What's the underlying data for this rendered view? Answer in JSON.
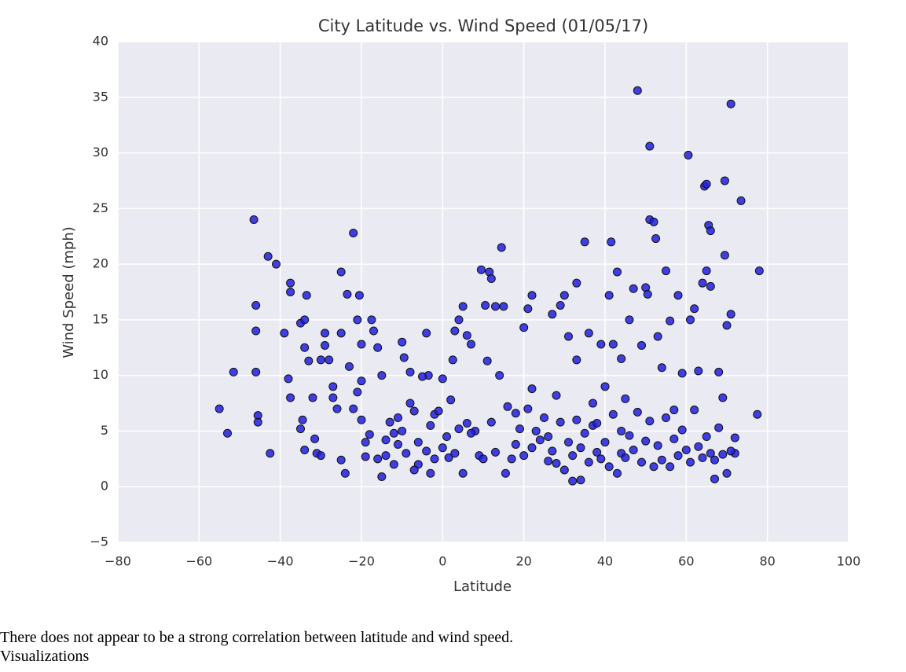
{
  "chart_data": {
    "type": "scatter",
    "title": "City Latitude vs. Wind Speed (01/05/17)",
    "x_label": "Latitude",
    "y_label": "Wind Speed (mph)",
    "color": "#2020e0",
    "grid": true,
    "xlim": [
      -80,
      100
    ],
    "ylim": [
      -5,
      40
    ],
    "xticks": [
      {
        "value": -80,
        "label": "−80"
      },
      {
        "value": -60,
        "label": "−60"
      },
      {
        "value": -40,
        "label": "−40"
      },
      {
        "value": -20,
        "label": "−20"
      },
      0,
      20,
      40,
      60,
      80,
      100
    ],
    "yticks": [
      {
        "value": -5,
        "label": "−5"
      },
      0,
      5,
      10,
      15,
      20,
      25,
      30,
      35,
      40
    ],
    "x": [
      -55,
      -53,
      -51.5,
      -46.5,
      -46,
      -46,
      -46,
      -45.5,
      -45.5,
      -43,
      -42.5,
      -41,
      -39,
      -38,
      -37.5,
      -37.5,
      -37.5,
      -35,
      -34,
      -34,
      -33.5,
      -33,
      -34,
      -34.5,
      -35,
      -32,
      -31.5,
      -31,
      -30,
      -29,
      -29,
      -28,
      -27,
      -26,
      -25,
      -25,
      -25,
      -24,
      -23.5,
      -23,
      -22,
      -21,
      -20.5,
      -20,
      -20,
      -20,
      -19,
      -18,
      -17.5,
      -17,
      -16,
      -15,
      -15,
      -14,
      -13,
      -12,
      -11,
      -10,
      -9.5,
      -8,
      -7,
      -6,
      -4,
      -3.5,
      -3,
      -2,
      0,
      0,
      1.5,
      2.5,
      3,
      4,
      5,
      6,
      7,
      8,
      9,
      9.5,
      10.5,
      11,
      11.5,
      12,
      13,
      14,
      14.5,
      15,
      15.5,
      18,
      20,
      21,
      22,
      22,
      24,
      26,
      27,
      28,
      29,
      30,
      31,
      32,
      33,
      33,
      34,
      35,
      36,
      37,
      38,
      39,
      40,
      41,
      41.5,
      42,
      43,
      44,
      44,
      45,
      46,
      47,
      48,
      49,
      50,
      50.5,
      51,
      51,
      52,
      52.5,
      53,
      54,
      55,
      56,
      57,
      58,
      59,
      60.5,
      61,
      62,
      63,
      64,
      64.5,
      65,
      65.5,
      65,
      66,
      66,
      67,
      68,
      69,
      69.5,
      69.5,
      70,
      71,
      71,
      72,
      73.5,
      77.5,
      78,
      -12,
      -10,
      -9,
      -8,
      -7,
      -6,
      -5,
      -4,
      -3,
      -2,
      -1,
      1,
      2,
      3,
      4,
      5,
      6,
      7,
      10,
      12,
      13,
      16,
      17,
      18,
      19,
      20,
      21,
      22,
      23,
      25,
      26,
      27,
      28,
      29,
      30,
      31,
      32,
      33,
      34,
      35,
      36,
      37,
      38,
      39,
      40,
      41,
      42,
      43,
      44,
      45,
      46,
      47,
      48,
      49,
      50,
      51,
      52,
      53,
      54,
      55,
      56,
      57,
      58,
      59,
      60,
      61,
      62,
      63,
      64,
      65,
      66,
      67,
      68,
      69,
      70,
      71,
      72,
      -30,
      -27,
      -22,
      -21,
      -19,
      -16,
      -14,
      -11
    ],
    "values": [
      7,
      4.8,
      10.3,
      24,
      16.3,
      14,
      10.3,
      6.4,
      5.8,
      20.7,
      3,
      20,
      13.8,
      9.7,
      18.3,
      17.5,
      8,
      14.7,
      15,
      12.5,
      17.2,
      11.3,
      3.3,
      6,
      5.2,
      8,
      4.3,
      3,
      2.8,
      12.7,
      13.8,
      11.4,
      9,
      7,
      19.3,
      13.8,
      2.4,
      1.2,
      17.3,
      10.8,
      22.8,
      15,
      17.2,
      12.8,
      9.5,
      6,
      2.7,
      4.7,
      15,
      14,
      12.5,
      10,
      0.9,
      2.8,
      5.8,
      4.8,
      3.8,
      13,
      11.6,
      10.3,
      6.8,
      2,
      13.8,
      10,
      1.2,
      6.5,
      3.5,
      9.7,
      2.6,
      11.4,
      14,
      15,
      16.2,
      13.6,
      12.8,
      5,
      2.8,
      19.5,
      16.3,
      11.3,
      19.3,
      18.7,
      16.2,
      10,
      21.5,
      16.2,
      1.2,
      6.6,
      14.3,
      16,
      17.2,
      8.8,
      4.2,
      2.3,
      15.5,
      8.2,
      16.3,
      17.2,
      13.5,
      0.5,
      18.3,
      11.4,
      0.6,
      22,
      13.8,
      5.5,
      5.7,
      12.8,
      9,
      17.2,
      22,
      12.8,
      19.3,
      11.5,
      3,
      7.9,
      15,
      17.8,
      35.6,
      12.7,
      17.9,
      17.3,
      30.6,
      24,
      23.8,
      22.3,
      13.5,
      10.7,
      19.4,
      14.9,
      6.9,
      17.2,
      10.2,
      29.8,
      15,
      16,
      10.4,
      18.3,
      27,
      27.2,
      23.5,
      19.4,
      23,
      18,
      0.7,
      10.3,
      8,
      20.8,
      27.5,
      14.5,
      34.4,
      15.5,
      3,
      25.7,
      6.5,
      19.4,
      2,
      5,
      3,
      7.5,
      1.5,
      4,
      9.9,
      3.2,
      5.5,
      2.5,
      6.8,
      4.5,
      7.8,
      3,
      5.2,
      1.2,
      5.7,
      4.8,
      2.5,
      5.8,
      3.1,
      7.2,
      2.5,
      3.8,
      5.2,
      2.8,
      7,
      3.5,
      5,
      6.2,
      4.5,
      3.2,
      2.1,
      5.8,
      1.5,
      4,
      2.8,
      6,
      3.5,
      4.8,
      2.2,
      7.5,
      3.1,
      2.5,
      4,
      1.8,
      6.5,
      1.2,
      5,
      2.6,
      4.6,
      3.3,
      6.7,
      2.2,
      4.1,
      5.9,
      1.8,
      3.7,
      2.4,
      6.2,
      1.8,
      4.3,
      2.8,
      5.1,
      3.3,
      2.2,
      6.9,
      3.6,
      2.6,
      4.5,
      3,
      2.4,
      5.3,
      2.9,
      1.2,
      3.2,
      4.4,
      11.4,
      8,
      7,
      8.5,
      4,
      2.5,
      4.2,
      6.2
    ]
  },
  "text": {
    "note": "There does not appear to be a strong correlation between latitude and wind speed.",
    "heading": "Visualizations"
  }
}
